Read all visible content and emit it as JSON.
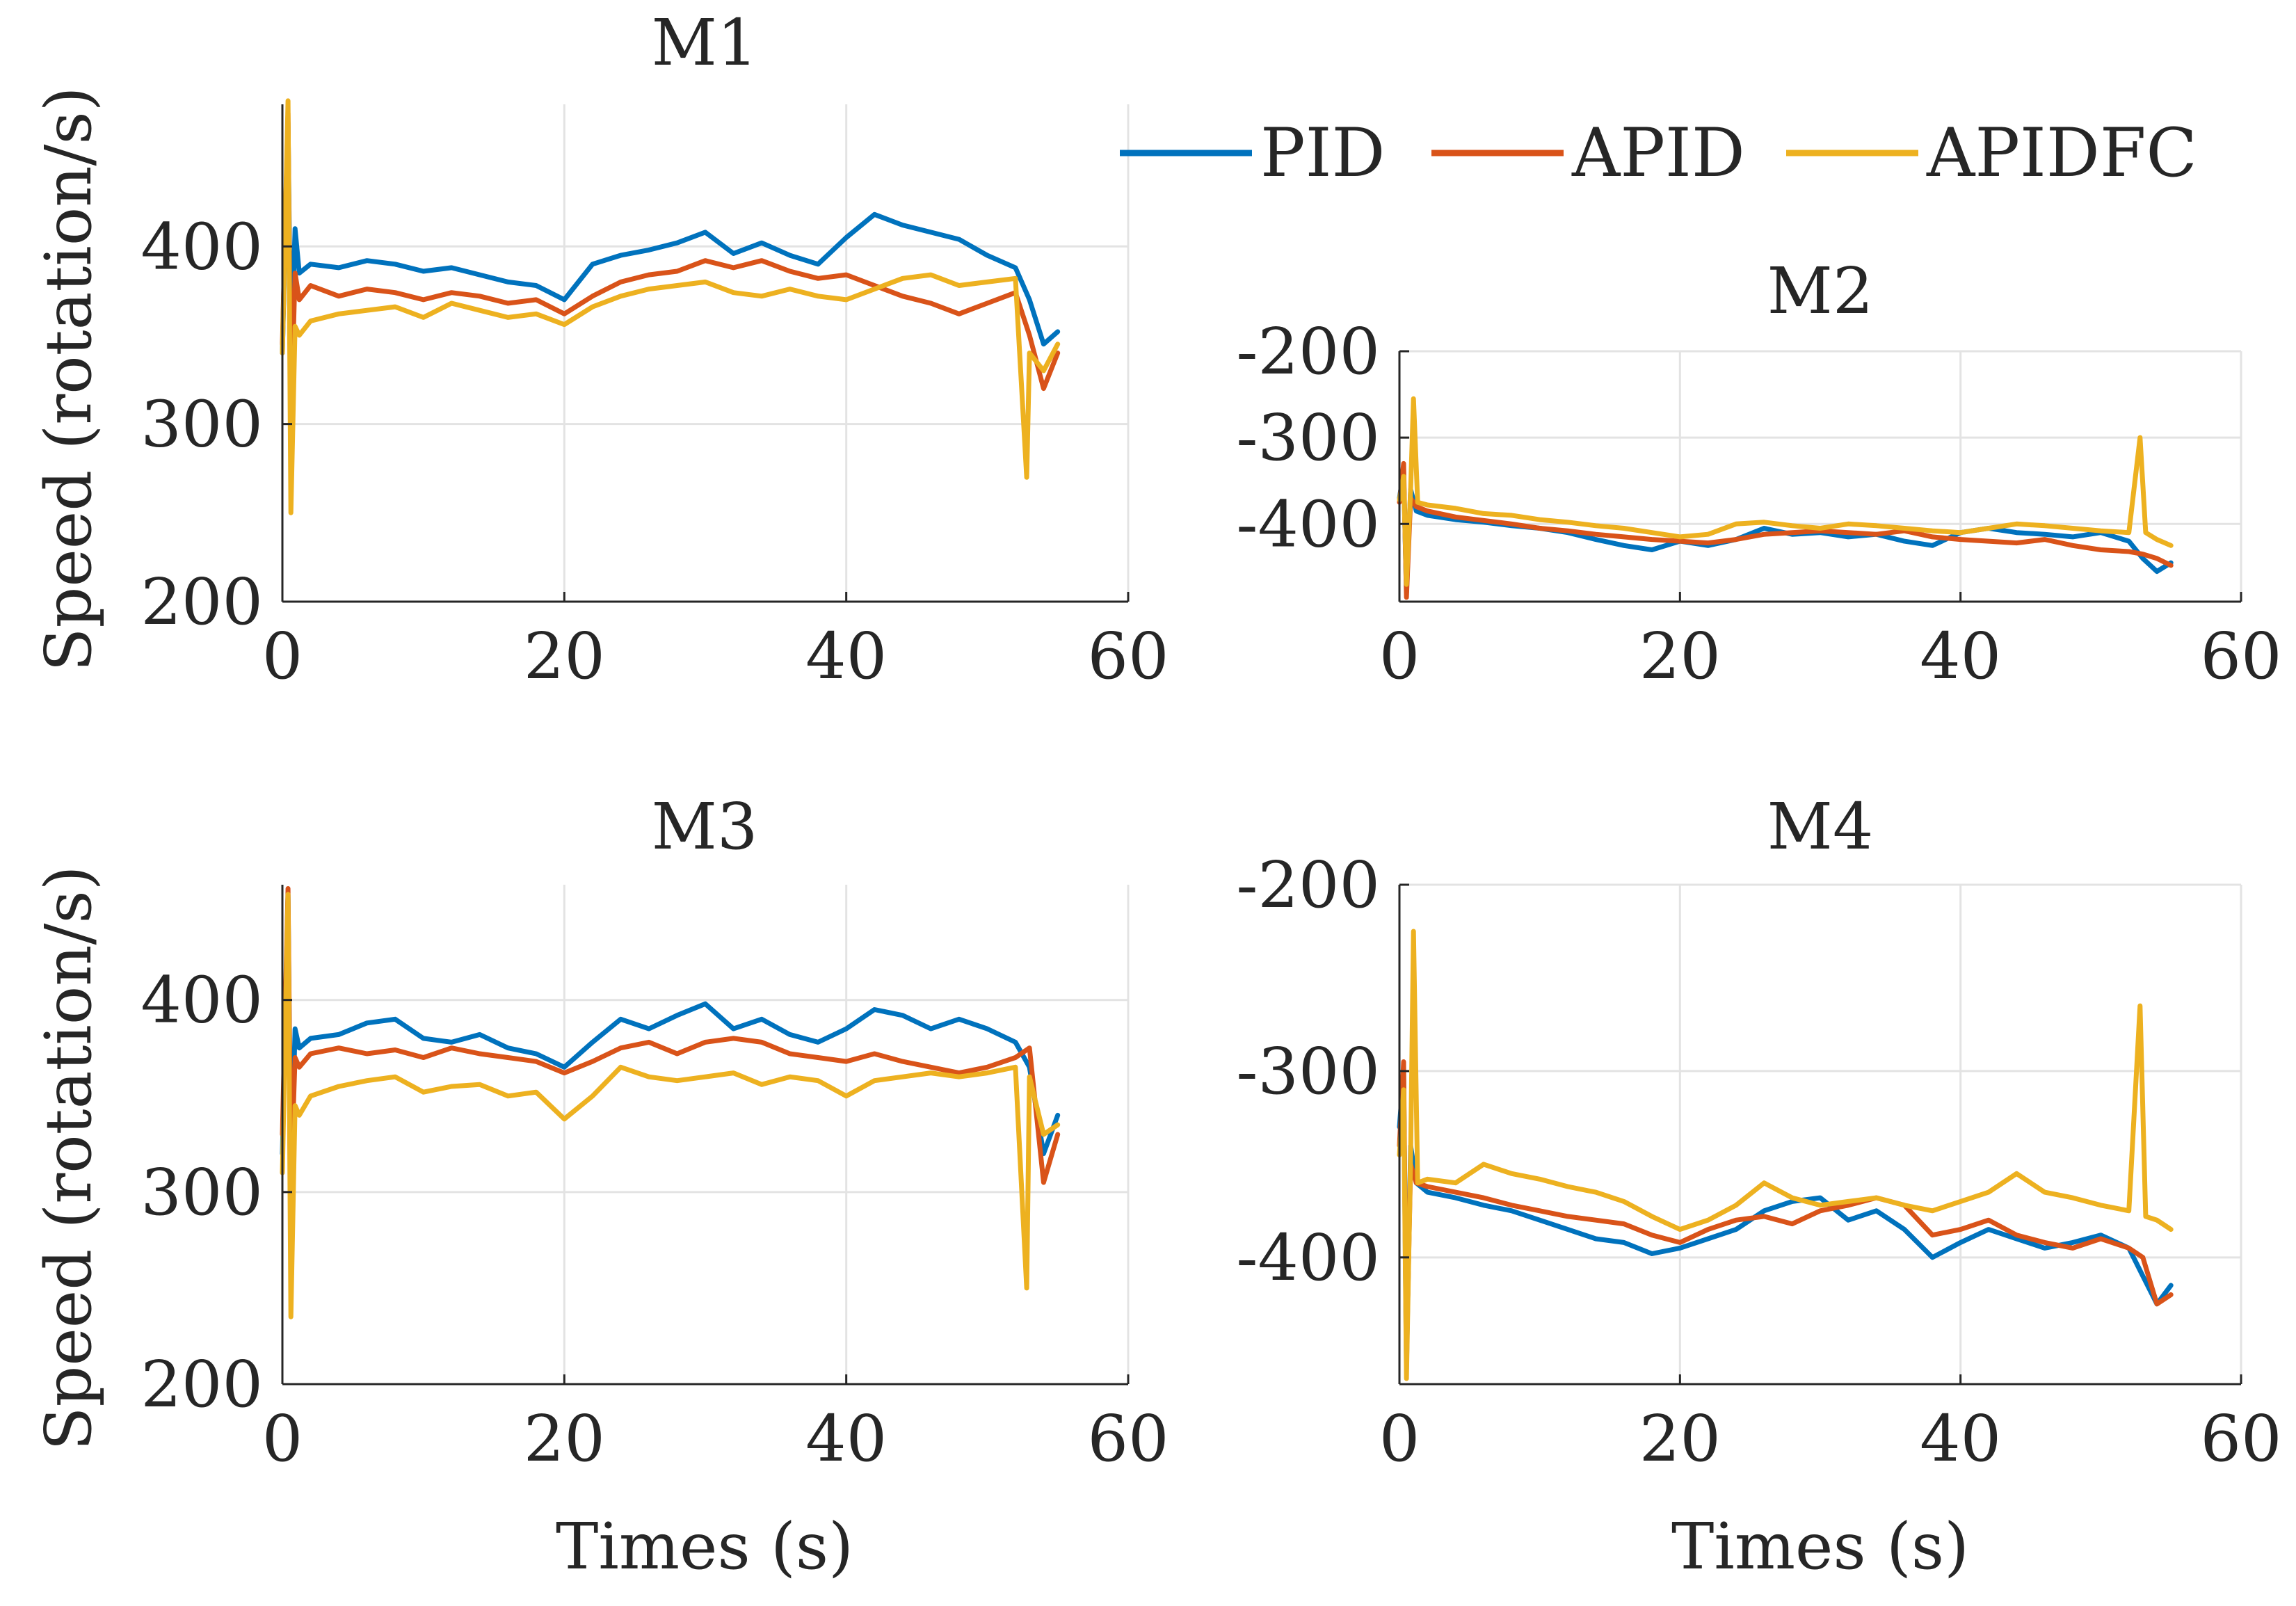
{
  "figure": {
    "legend": {
      "placement": "top-right",
      "entries": [
        {
          "label": "PID",
          "color": "#0072BD"
        },
        {
          "label": "APID",
          "color": "#D95319"
        },
        {
          "label": "APIDFC",
          "color": "#EDB120"
        }
      ]
    }
  },
  "chart_data": [
    {
      "type": "line",
      "title": "M1",
      "xlabel": "",
      "ylabel": "Speed (rotation/s)",
      "xlim": [
        0,
        60
      ],
      "ylim": [
        200,
        480
      ],
      "xticks": [
        0,
        20,
        40,
        60
      ],
      "yticks": [
        200,
        300,
        400
      ],
      "grid": true,
      "series": [
        {
          "name": "PID",
          "color": "#0072BD",
          "x": [
            0,
            0.4,
            0.6,
            0.9,
            1.2,
            2,
            4,
            6,
            8,
            10,
            12,
            14,
            16,
            18,
            20,
            22,
            24,
            26,
            28,
            30,
            32,
            34,
            36,
            38,
            40,
            42,
            44,
            46,
            48,
            50,
            52,
            53,
            54,
            55
          ],
          "y": [
            340,
            470,
            330,
            410,
            385,
            390,
            388,
            392,
            390,
            386,
            388,
            384,
            380,
            378,
            370,
            390,
            395,
            398,
            402,
            408,
            396,
            402,
            395,
            390,
            405,
            418,
            412,
            408,
            404,
            395,
            388,
            370,
            345,
            352
          ]
        },
        {
          "name": "APID",
          "color": "#D95319",
          "x": [
            0,
            0.4,
            0.6,
            0.9,
            1.2,
            2,
            4,
            6,
            8,
            10,
            12,
            14,
            16,
            18,
            20,
            22,
            24,
            26,
            28,
            30,
            32,
            34,
            36,
            38,
            40,
            42,
            44,
            46,
            48,
            50,
            52,
            53,
            54,
            55
          ],
          "y": [
            345,
            475,
            300,
            385,
            370,
            378,
            372,
            376,
            374,
            370,
            374,
            372,
            368,
            370,
            362,
            372,
            380,
            384,
            386,
            392,
            388,
            392,
            386,
            382,
            384,
            378,
            372,
            368,
            362,
            368,
            374,
            350,
            320,
            340
          ]
        },
        {
          "name": "APIDFC",
          "color": "#EDB120",
          "x": [
            0,
            0.4,
            0.6,
            0.9,
            1.2,
            2,
            4,
            6,
            8,
            10,
            12,
            14,
            16,
            18,
            20,
            22,
            24,
            26,
            28,
            30,
            32,
            34,
            36,
            38,
            40,
            42,
            44,
            46,
            48,
            50,
            52,
            52.8,
            53,
            54,
            55
          ],
          "y": [
            340,
            482,
            250,
            355,
            350,
            358,
            362,
            364,
            366,
            360,
            368,
            364,
            360,
            362,
            356,
            366,
            372,
            376,
            378,
            380,
            374,
            372,
            376,
            372,
            370,
            376,
            382,
            384,
            378,
            380,
            382,
            270,
            340,
            330,
            345
          ]
        }
      ]
    },
    {
      "type": "line",
      "title": "M2",
      "xlabel": "",
      "ylabel": "",
      "xlim": [
        0,
        60
      ],
      "ylim": [
        -490,
        -200
      ],
      "xticks": [
        0,
        20,
        40,
        60
      ],
      "yticks": [
        -200,
        -300,
        -400
      ],
      "grid": true,
      "series": [
        {
          "name": "PID",
          "color": "#0072BD",
          "x": [
            0,
            0.3,
            0.5,
            0.8,
            1.2,
            2,
            4,
            6,
            8,
            10,
            12,
            14,
            16,
            18,
            20,
            22,
            24,
            26,
            28,
            30,
            32,
            34,
            36,
            38,
            40,
            42,
            44,
            46,
            48,
            50,
            52,
            53,
            54,
            55
          ],
          "y": [
            -370,
            -340,
            -480,
            -360,
            -385,
            -390,
            -395,
            -398,
            -402,
            -405,
            -410,
            -418,
            -425,
            -430,
            -420,
            -425,
            -418,
            -405,
            -412,
            -410,
            -415,
            -412,
            -420,
            -425,
            -410,
            -405,
            -410,
            -412,
            -415,
            -410,
            -420,
            -440,
            -455,
            -445
          ]
        },
        {
          "name": "APID",
          "color": "#D95319",
          "x": [
            0,
            0.3,
            0.5,
            0.8,
            1.2,
            2,
            4,
            6,
            8,
            10,
            12,
            14,
            16,
            18,
            20,
            22,
            24,
            26,
            28,
            30,
            32,
            34,
            36,
            38,
            40,
            42,
            44,
            46,
            48,
            50,
            52,
            53,
            54,
            55
          ],
          "y": [
            -375,
            -330,
            -485,
            -370,
            -380,
            -385,
            -392,
            -396,
            -400,
            -405,
            -408,
            -412,
            -415,
            -418,
            -420,
            -422,
            -418,
            -412,
            -410,
            -408,
            -410,
            -412,
            -408,
            -415,
            -418,
            -420,
            -422,
            -418,
            -425,
            -430,
            -432,
            -435,
            -440,
            -448
          ]
        },
        {
          "name": "APIDFC",
          "color": "#EDB120",
          "x": [
            0,
            0.3,
            0.5,
            0.8,
            1.0,
            1.3,
            2,
            4,
            6,
            8,
            10,
            12,
            14,
            16,
            18,
            20,
            22,
            24,
            26,
            28,
            30,
            32,
            34,
            36,
            38,
            40,
            42,
            44,
            46,
            48,
            50,
            52,
            52.8,
            53.2,
            54,
            55
          ],
          "y": [
            -372,
            -345,
            -470,
            -360,
            -255,
            -375,
            -378,
            -382,
            -388,
            -390,
            -395,
            -398,
            -402,
            -405,
            -410,
            -415,
            -412,
            -400,
            -398,
            -402,
            -405,
            -400,
            -402,
            -405,
            -408,
            -410,
            -405,
            -400,
            -402,
            -405,
            -408,
            -410,
            -300,
            -410,
            -418,
            -425
          ]
        }
      ]
    },
    {
      "type": "line",
      "title": "M3",
      "xlabel": "Times (s)",
      "ylabel": "Speed (rotation/s)",
      "xlim": [
        0,
        60
      ],
      "ylim": [
        200,
        460
      ],
      "xticks": [
        0,
        20,
        40,
        60
      ],
      "yticks": [
        200,
        300,
        400
      ],
      "grid": true,
      "series": [
        {
          "name": "PID",
          "color": "#0072BD",
          "x": [
            0,
            0.4,
            0.6,
            0.9,
            1.2,
            2,
            4,
            6,
            8,
            10,
            12,
            14,
            16,
            18,
            20,
            22,
            24,
            26,
            28,
            30,
            32,
            34,
            36,
            38,
            40,
            42,
            44,
            46,
            48,
            50,
            52,
            53,
            54,
            55
          ],
          "y": [
            320,
            455,
            300,
            385,
            375,
            380,
            382,
            388,
            390,
            380,
            378,
            382,
            375,
            372,
            365,
            378,
            390,
            385,
            392,
            398,
            385,
            390,
            382,
            378,
            385,
            395,
            392,
            385,
            390,
            385,
            378,
            365,
            320,
            340
          ]
        },
        {
          "name": "APID",
          "color": "#D95319",
          "x": [
            0,
            0.4,
            0.6,
            0.9,
            1.2,
            2,
            4,
            6,
            8,
            10,
            12,
            14,
            16,
            18,
            20,
            22,
            24,
            26,
            28,
            30,
            32,
            34,
            36,
            38,
            40,
            42,
            44,
            46,
            48,
            50,
            52,
            53,
            54,
            55
          ],
          "y": [
            330,
            458,
            305,
            370,
            365,
            372,
            375,
            372,
            374,
            370,
            375,
            372,
            370,
            368,
            362,
            368,
            375,
            378,
            372,
            378,
            380,
            378,
            372,
            370,
            368,
            372,
            368,
            365,
            362,
            365,
            370,
            375,
            305,
            330
          ]
        },
        {
          "name": "APIDFC",
          "color": "#EDB120",
          "x": [
            0,
            0.4,
            0.6,
            0.9,
            1.2,
            2,
            4,
            6,
            8,
            10,
            12,
            14,
            16,
            18,
            20,
            22,
            24,
            26,
            28,
            30,
            32,
            34,
            36,
            38,
            40,
            42,
            44,
            46,
            48,
            50,
            52,
            52.8,
            53,
            54,
            55
          ],
          "y": [
            310,
            455,
            235,
            345,
            340,
            350,
            355,
            358,
            360,
            352,
            355,
            356,
            350,
            352,
            338,
            350,
            365,
            360,
            358,
            360,
            362,
            356,
            360,
            358,
            350,
            358,
            360,
            362,
            360,
            362,
            365,
            250,
            360,
            330,
            335
          ]
        }
      ]
    },
    {
      "type": "line",
      "title": "M4",
      "xlabel": "Times (s)",
      "ylabel": "",
      "xlim": [
        0,
        60
      ],
      "ylim": [
        -468,
        -200
      ],
      "xticks": [
        0,
        20,
        40,
        60
      ],
      "yticks": [
        -200,
        -300,
        -400
      ],
      "grid": true,
      "series": [
        {
          "name": "PID",
          "color": "#0072BD",
          "x": [
            0,
            0.3,
            0.5,
            0.8,
            1.2,
            2,
            4,
            6,
            8,
            10,
            12,
            14,
            16,
            18,
            20,
            22,
            24,
            26,
            28,
            30,
            32,
            34,
            36,
            38,
            40,
            42,
            44,
            46,
            48,
            50,
            52,
            53,
            54,
            55
          ],
          "y": [
            -330,
            -300,
            -460,
            -340,
            -360,
            -365,
            -368,
            -372,
            -375,
            -380,
            -385,
            -390,
            -392,
            -398,
            -395,
            -390,
            -385,
            -375,
            -370,
            -368,
            -380,
            -375,
            -385,
            -400,
            -392,
            -385,
            -390,
            -395,
            -392,
            -388,
            -395,
            -410,
            -425,
            -415
          ]
        },
        {
          "name": "APID",
          "color": "#D95319",
          "x": [
            0,
            0.3,
            0.5,
            0.8,
            1.2,
            2,
            4,
            6,
            8,
            10,
            12,
            14,
            16,
            18,
            20,
            22,
            24,
            26,
            28,
            30,
            32,
            34,
            36,
            38,
            40,
            42,
            44,
            46,
            48,
            50,
            52,
            53,
            54,
            55
          ],
          "y": [
            -340,
            -295,
            -455,
            -350,
            -360,
            -362,
            -365,
            -368,
            -372,
            -375,
            -378,
            -380,
            -382,
            -388,
            -392,
            -385,
            -380,
            -378,
            -382,
            -375,
            -372,
            -368,
            -372,
            -388,
            -385,
            -380,
            -388,
            -392,
            -395,
            -390,
            -395,
            -400,
            -425,
            -420
          ]
        },
        {
          "name": "APIDFC",
          "color": "#EDB120",
          "x": [
            0,
            0.3,
            0.5,
            0.8,
            1.0,
            1.3,
            2,
            4,
            6,
            8,
            10,
            12,
            14,
            16,
            18,
            20,
            22,
            24,
            26,
            28,
            30,
            32,
            34,
            36,
            38,
            40,
            42,
            44,
            46,
            48,
            50,
            52,
            52.8,
            53.2,
            54,
            55
          ],
          "y": [
            -345,
            -310,
            -465,
            -345,
            -225,
            -360,
            -358,
            -360,
            -350,
            -355,
            -358,
            -362,
            -365,
            -370,
            -378,
            -385,
            -380,
            -372,
            -360,
            -368,
            -372,
            -370,
            -368,
            -372,
            -375,
            -370,
            -365,
            -355,
            -365,
            -368,
            -372,
            -375,
            -265,
            -378,
            -380,
            -385
          ]
        }
      ]
    }
  ]
}
